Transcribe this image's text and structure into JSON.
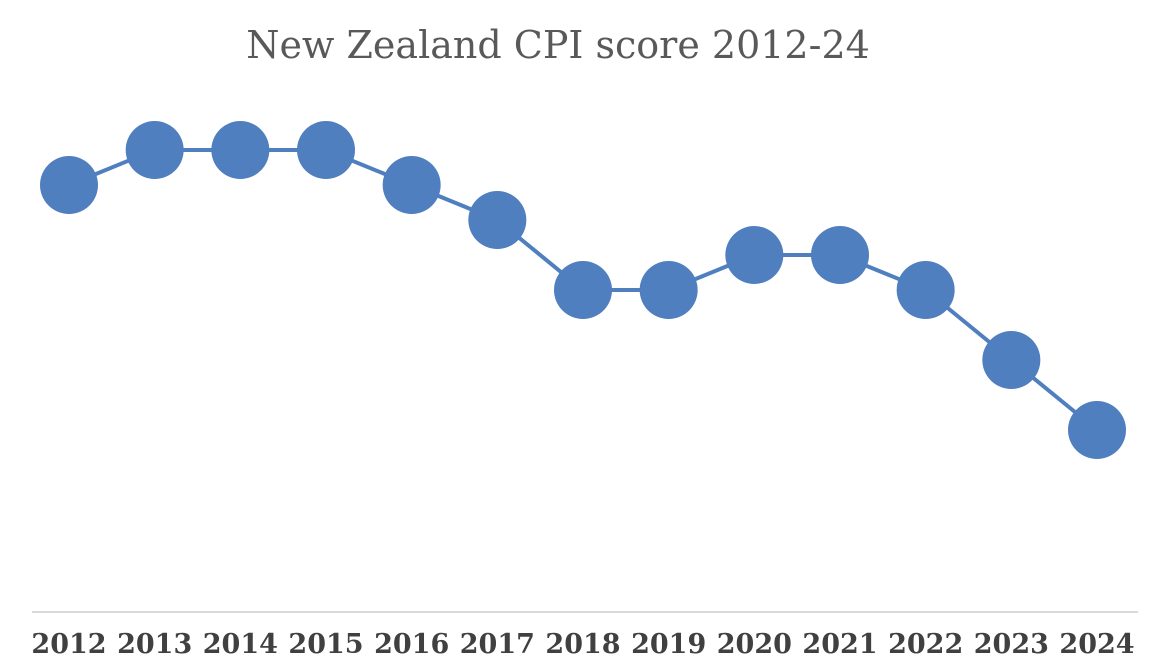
{
  "chart_data": {
    "type": "line",
    "title": "New Zealand CPI score 2012-24",
    "categories": [
      "2012",
      "2013",
      "2014",
      "2015",
      "2016",
      "2017",
      "2018",
      "2019",
      "2020",
      "2021",
      "2022",
      "2023",
      "2024"
    ],
    "values": [
      90,
      91,
      91,
      91,
      90,
      89,
      87,
      87,
      88,
      88,
      87,
      85,
      83
    ],
    "color": "#4f7fbf",
    "ylim": [
      78,
      93
    ],
    "grid": false
  }
}
